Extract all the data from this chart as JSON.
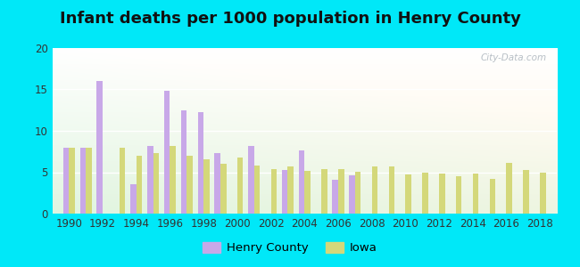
{
  "title": "Infant deaths per 1000 population in Henry County",
  "years": [
    1990,
    1991,
    1992,
    1993,
    1994,
    1995,
    1996,
    1997,
    1998,
    1999,
    2000,
    2001,
    2002,
    2003,
    2004,
    2005,
    2006,
    2007,
    2008,
    2009,
    2010,
    2011,
    2012,
    2013,
    2014,
    2015,
    2016,
    2017,
    2018
  ],
  "henry_county": [
    8.0,
    8.0,
    16.0,
    null,
    3.5,
    8.2,
    14.8,
    12.5,
    12.3,
    7.3,
    null,
    8.2,
    null,
    5.3,
    7.6,
    null,
    4.1,
    4.6,
    null,
    null,
    null,
    null,
    null,
    null,
    null,
    null,
    null,
    null,
    null
  ],
  "iowa": [
    8.0,
    8.0,
    null,
    8.0,
    7.0,
    7.3,
    8.2,
    7.0,
    6.6,
    6.0,
    6.8,
    5.8,
    5.4,
    5.7,
    5.2,
    5.4,
    5.4,
    5.1,
    5.7,
    5.7,
    4.7,
    5.0,
    4.8,
    4.5,
    4.8,
    4.2,
    6.1,
    5.3,
    4.9
  ],
  "henry_color": "#c8a8e8",
  "iowa_color": "#d4d87a",
  "outer_bg": "#00e8f8",
  "ylim": [
    0,
    20
  ],
  "yticks": [
    0,
    5,
    10,
    15,
    20
  ],
  "bar_width": 0.35,
  "title_fontsize": 13
}
